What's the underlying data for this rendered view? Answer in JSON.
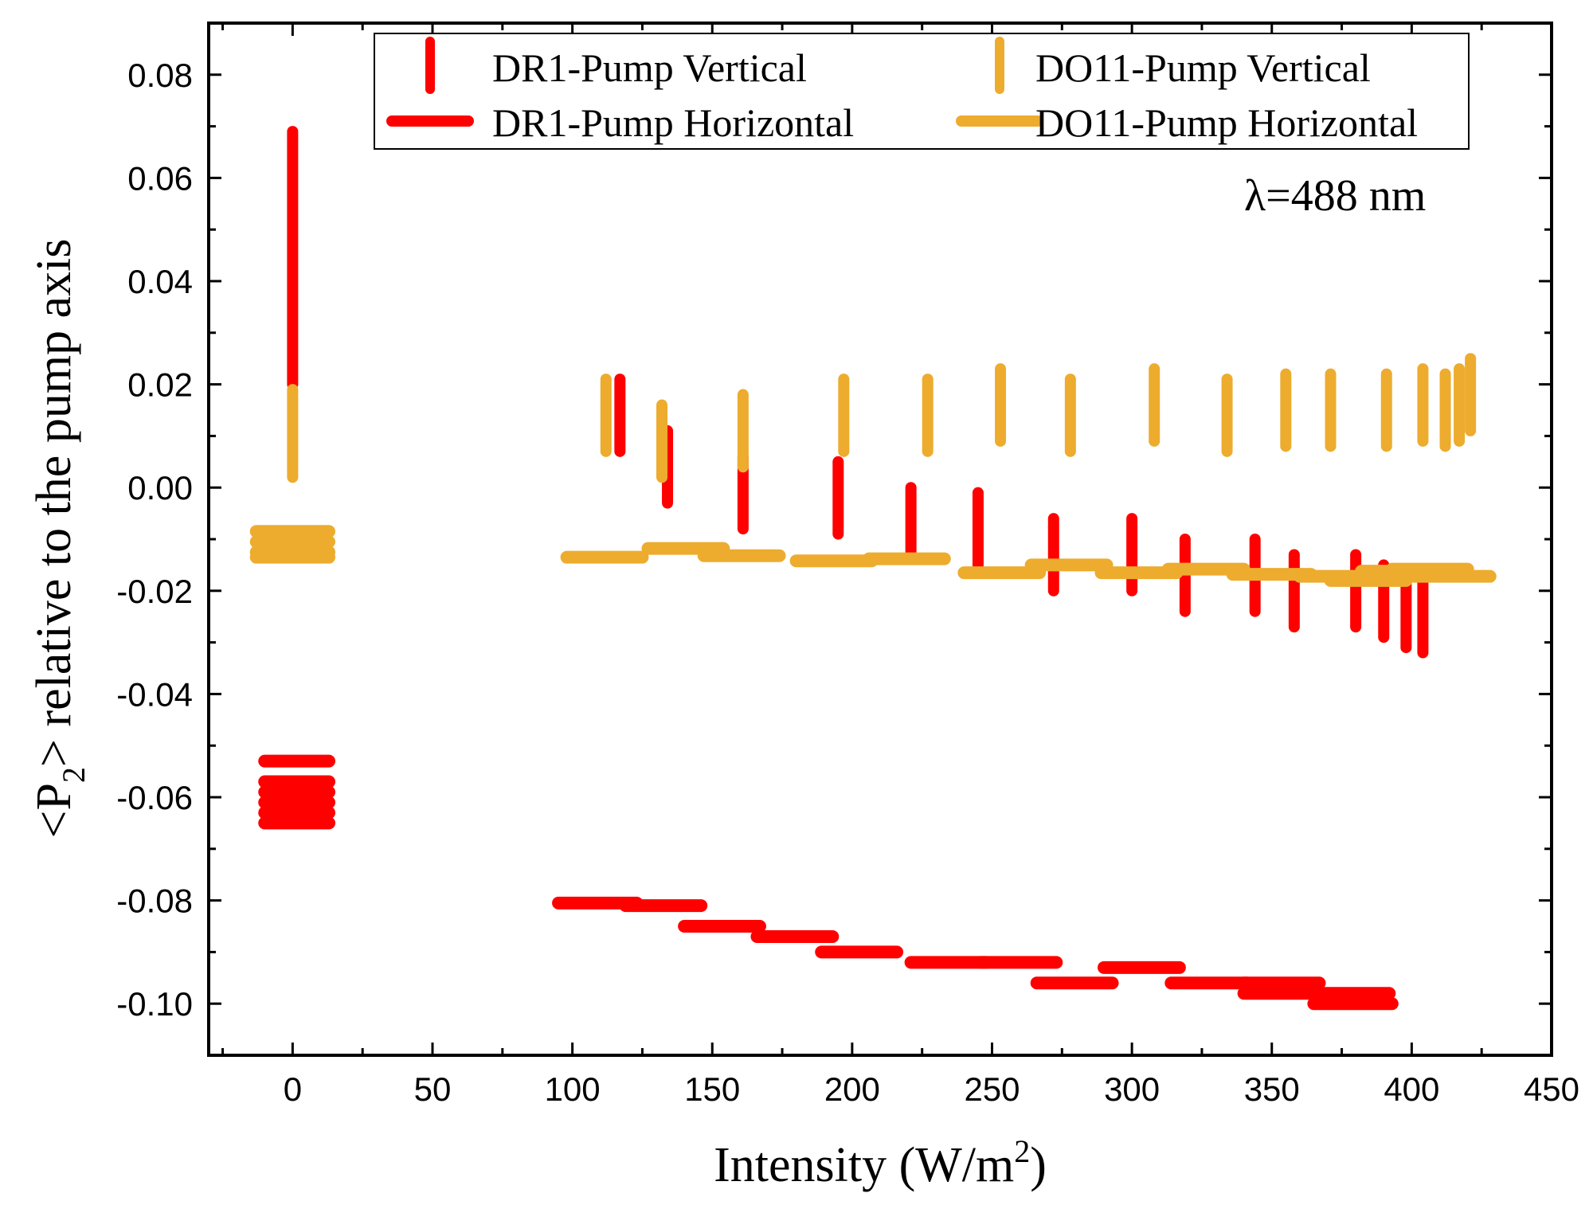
{
  "chart_data": {
    "type": "scatter",
    "xlabel": {
      "main": "Intensity (W/m",
      "sup": "2",
      "tail": ")"
    },
    "ylabel": {
      "pre": "<P",
      "sub": "2",
      "post": "> relative to the pump axis"
    },
    "xlim": [
      -30,
      450
    ],
    "ylim": [
      -0.11,
      0.09
    ],
    "xticks": [
      0,
      50,
      100,
      150,
      200,
      250,
      300,
      350,
      400,
      450
    ],
    "xtick_labels": [
      "0",
      "50",
      "100",
      "150",
      "200",
      "250",
      "300",
      "350",
      "400",
      "450"
    ],
    "yticks": [
      0.08,
      0.06,
      0.04,
      0.02,
      0.0,
      -0.02,
      -0.04,
      -0.06,
      -0.08,
      -0.1
    ],
    "ytick_labels": [
      "0.08",
      "0.06",
      "0.04",
      "0.02",
      "0.00",
      "-0.02",
      "-0.04",
      "-0.06",
      "-0.08",
      "-0.10"
    ],
    "annotation": "λ=488 nm",
    "colors": {
      "DR1": "#ff0000",
      "DO11": "#edac2e",
      "axis": "#000000"
    },
    "series": [
      {
        "name": "DR1-Pump Vertical",
        "marker": "vertical",
        "color": "#ff0000",
        "points": [
          {
            "x": 0,
            "y1": 0.069,
            "y2": 0.02
          },
          {
            "x": 117,
            "y1": 0.021,
            "y2": 0.007
          },
          {
            "x": 134,
            "y1": 0.011,
            "y2": -0.003
          },
          {
            "x": 161,
            "y1": 0.006,
            "y2": -0.008
          },
          {
            "x": 195,
            "y1": 0.005,
            "y2": -0.009
          },
          {
            "x": 221,
            "y1": 0.0,
            "y2": -0.013
          },
          {
            "x": 245,
            "y1": -0.001,
            "y2": -0.015
          },
          {
            "x": 272,
            "y1": -0.006,
            "y2": -0.02
          },
          {
            "x": 300,
            "y1": -0.006,
            "y2": -0.02
          },
          {
            "x": 319,
            "y1": -0.01,
            "y2": -0.024
          },
          {
            "x": 344,
            "y1": -0.01,
            "y2": -0.024
          },
          {
            "x": 358,
            "y1": -0.013,
            "y2": -0.027
          },
          {
            "x": 380,
            "y1": -0.013,
            "y2": -0.027
          },
          {
            "x": 390,
            "y1": -0.015,
            "y2": -0.029
          },
          {
            "x": 398,
            "y1": -0.017,
            "y2": -0.031
          },
          {
            "x": 404,
            "y1": -0.018,
            "y2": -0.032
          }
        ]
      },
      {
        "name": "DO11-Pump Vertical",
        "marker": "vertical",
        "color": "#edac2e",
        "points": [
          {
            "x": 0,
            "y1": 0.019,
            "y2": 0.002
          },
          {
            "x": 112,
            "y1": 0.021,
            "y2": 0.007
          },
          {
            "x": 132,
            "y1": 0.016,
            "y2": 0.002
          },
          {
            "x": 161,
            "y1": 0.018,
            "y2": 0.004
          },
          {
            "x": 197,
            "y1": 0.021,
            "y2": 0.007
          },
          {
            "x": 227,
            "y1": 0.021,
            "y2": 0.007
          },
          {
            "x": 253,
            "y1": 0.023,
            "y2": 0.009
          },
          {
            "x": 278,
            "y1": 0.021,
            "y2": 0.007
          },
          {
            "x": 308,
            "y1": 0.023,
            "y2": 0.009
          },
          {
            "x": 334,
            "y1": 0.021,
            "y2": 0.007
          },
          {
            "x": 355,
            "y1": 0.022,
            "y2": 0.008
          },
          {
            "x": 371,
            "y1": 0.022,
            "y2": 0.008
          },
          {
            "x": 391,
            "y1": 0.022,
            "y2": 0.008
          },
          {
            "x": 404,
            "y1": 0.023,
            "y2": 0.009
          },
          {
            "x": 412,
            "y1": 0.022,
            "y2": 0.008
          },
          {
            "x": 417,
            "y1": 0.023,
            "y2": 0.009
          },
          {
            "x": 421,
            "y1": 0.025,
            "y2": 0.011
          }
        ]
      },
      {
        "name": "DR1-Pump Horizontal",
        "marker": "horizontal",
        "color": "#ff0000",
        "points": [
          {
            "x1": -10,
            "x2": 13,
            "y": -0.053
          },
          {
            "x1": -10,
            "x2": 13,
            "y": -0.057
          },
          {
            "x1": -10,
            "x2": 13,
            "y": -0.059
          },
          {
            "x1": -10,
            "x2": 13,
            "y": -0.061
          },
          {
            "x1": -10,
            "x2": 13,
            "y": -0.063
          },
          {
            "x1": -10,
            "x2": 13,
            "y": -0.065
          },
          {
            "x1": 95,
            "x2": 123,
            "y": -0.0805
          },
          {
            "x1": 119,
            "x2": 146,
            "y": -0.081
          },
          {
            "x1": 140,
            "x2": 167,
            "y": -0.085
          },
          {
            "x1": 166,
            "x2": 193,
            "y": -0.087
          },
          {
            "x1": 189,
            "x2": 216,
            "y": -0.09
          },
          {
            "x1": 221,
            "x2": 248,
            "y": -0.092
          },
          {
            "x1": 246,
            "x2": 273,
            "y": -0.092
          },
          {
            "x1": 266,
            "x2": 293,
            "y": -0.096
          },
          {
            "x1": 290,
            "x2": 317,
            "y": -0.093
          },
          {
            "x1": 314,
            "x2": 341,
            "y": -0.096
          },
          {
            "x1": 340,
            "x2": 367,
            "y": -0.096
          },
          {
            "x1": 340,
            "x2": 367,
            "y": -0.098
          },
          {
            "x1": 365,
            "x2": 392,
            "y": -0.098
          },
          {
            "x1": 365,
            "x2": 393,
            "y": -0.1
          }
        ]
      },
      {
        "name": "DO11-Pump Horizontal",
        "marker": "horizontal",
        "color": "#edac2e",
        "points": [
          {
            "x1": -13,
            "x2": 13,
            "y": -0.0085
          },
          {
            "x1": -13,
            "x2": 13,
            "y": -0.0105
          },
          {
            "x1": -13,
            "x2": 13,
            "y": -0.0125
          },
          {
            "x1": -13,
            "x2": 13,
            "y": -0.0135
          },
          {
            "x1": 98,
            "x2": 125,
            "y": -0.0135
          },
          {
            "x1": 127,
            "x2": 154,
            "y": -0.0118
          },
          {
            "x1": 147,
            "x2": 174,
            "y": -0.0132
          },
          {
            "x1": 180,
            "x2": 207,
            "y": -0.0142
          },
          {
            "x1": 206,
            "x2": 233,
            "y": -0.0138
          },
          {
            "x1": 240,
            "x2": 267,
            "y": -0.0165
          },
          {
            "x1": 264,
            "x2": 291,
            "y": -0.015
          },
          {
            "x1": 289,
            "x2": 316,
            "y": -0.0165
          },
          {
            "x1": 313,
            "x2": 340,
            "y": -0.0158
          },
          {
            "x1": 336,
            "x2": 364,
            "y": -0.0168
          },
          {
            "x1": 360,
            "x2": 387,
            "y": -0.0172
          },
          {
            "x1": 371,
            "x2": 398,
            "y": -0.018
          },
          {
            "x1": 382,
            "x2": 409,
            "y": -0.0162
          },
          {
            "x1": 393,
            "x2": 420,
            "y": -0.0158
          },
          {
            "x1": 401,
            "x2": 428,
            "y": -0.0172
          }
        ]
      }
    ],
    "legend": [
      {
        "label": "DR1-Pump Vertical",
        "marker": "vertical",
        "color": "#ff0000"
      },
      {
        "label": "DO11-Pump Vertical",
        "marker": "vertical",
        "color": "#edac2e"
      },
      {
        "label": "DR1-Pump Horizontal",
        "marker": "horizontal",
        "color": "#ff0000"
      },
      {
        "label": "DO11-Pump Horizontal",
        "marker": "horizontal",
        "color": "#edac2e"
      }
    ]
  }
}
